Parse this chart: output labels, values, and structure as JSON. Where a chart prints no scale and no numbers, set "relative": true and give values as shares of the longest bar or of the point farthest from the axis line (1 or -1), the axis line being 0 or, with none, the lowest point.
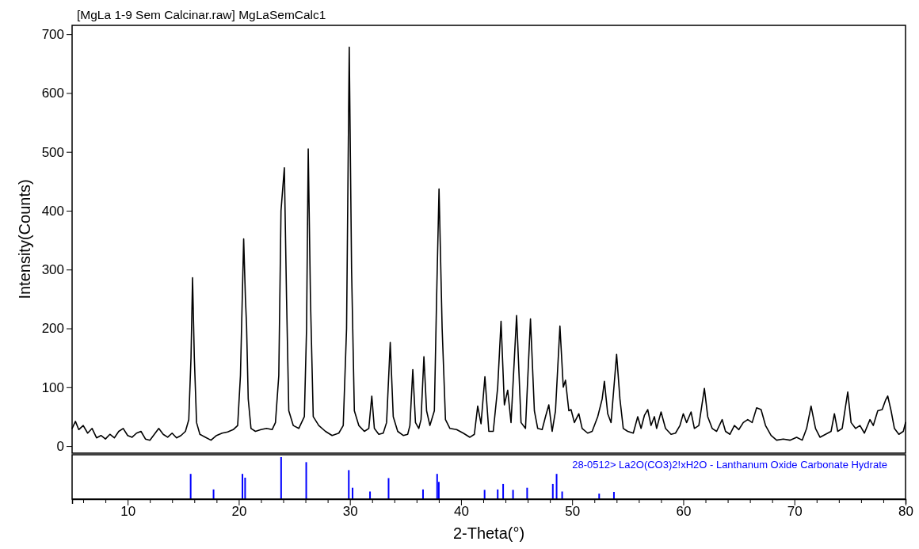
{
  "chart_data": [
    {
      "type": "line",
      "title": "[MgLa 1-9 Sem Calcinar.raw] MgLaSemCalc1",
      "ylabel": "Intensity(Counts)",
      "xlim": [
        5,
        80
      ],
      "ylim": [
        -12,
        715
      ],
      "yticks": [
        0,
        100,
        200,
        300,
        400,
        500,
        600,
        700
      ],
      "tick_labels": "y",
      "x": [
        5.0,
        5.3,
        5.6,
        6.0,
        6.4,
        6.8,
        7.2,
        7.6,
        8.0,
        8.4,
        8.8,
        9.2,
        9.6,
        10.0,
        10.4,
        10.8,
        11.2,
        11.6,
        12.0,
        12.4,
        12.8,
        13.2,
        13.6,
        14.0,
        14.4,
        14.8,
        15.2,
        15.5,
        15.7,
        15.84,
        16.0,
        16.2,
        16.5,
        17.0,
        17.5,
        18.0,
        18.5,
        19.0,
        19.5,
        19.9,
        20.15,
        20.44,
        20.6,
        20.7,
        20.85,
        21.1,
        21.5,
        22.0,
        22.5,
        23.0,
        23.3,
        23.6,
        23.8,
        24.1,
        24.3,
        24.5,
        24.9,
        25.4,
        25.9,
        26.1,
        26.25,
        26.45,
        26.7,
        27.2,
        27.8,
        28.4,
        29.0,
        29.4,
        29.7,
        29.94,
        30.15,
        30.4,
        30.8,
        31.3,
        31.7,
        31.97,
        32.2,
        32.6,
        33.0,
        33.3,
        33.63,
        33.9,
        34.3,
        34.8,
        35.2,
        35.4,
        35.66,
        35.9,
        36.2,
        36.4,
        36.66,
        36.9,
        37.2,
        37.6,
        37.8,
        38.02,
        38.3,
        38.6,
        39.0,
        39.6,
        40.2,
        40.8,
        41.2,
        41.5,
        41.8,
        42.15,
        42.5,
        42.9,
        43.3,
        43.6,
        43.9,
        44.2,
        44.5,
        45.0,
        45.4,
        45.8,
        46.25,
        46.6,
        46.9,
        47.3,
        47.6,
        47.9,
        48.2,
        48.5,
        48.9,
        49.2,
        49.4,
        49.7,
        49.9,
        50.2,
        50.6,
        50.9,
        51.4,
        51.8,
        52.3,
        52.7,
        52.9,
        53.2,
        53.5,
        54.0,
        54.3,
        54.6,
        55.0,
        55.5,
        55.9,
        56.2,
        56.5,
        56.8,
        57.1,
        57.4,
        57.6,
        58.0,
        58.4,
        58.9,
        59.3,
        59.7,
        60.0,
        60.3,
        60.7,
        61.0,
        61.4,
        61.9,
        62.2,
        62.6,
        63.0,
        63.5,
        63.8,
        64.2,
        64.6,
        65.0,
        65.4,
        65.8,
        66.2,
        66.6,
        67.0,
        67.4,
        67.9,
        68.4,
        69.0,
        69.6,
        70.2,
        70.7,
        71.1,
        71.5,
        71.9,
        72.3,
        72.8,
        73.3,
        73.6,
        73.9,
        74.3,
        74.8,
        75.1,
        75.5,
        75.9,
        76.3,
        76.8,
        77.1,
        77.5,
        77.9,
        78.2,
        78.4,
        78.7,
        79.0,
        79.4,
        79.8,
        80.0
      ],
      "series": [
        {
          "color": "#000000",
          "values": [
            30,
            42,
            28,
            35,
            22,
            30,
            14,
            18,
            12,
            20,
            14,
            25,
            30,
            18,
            15,
            22,
            25,
            12,
            10,
            20,
            30,
            20,
            15,
            22,
            14,
            18,
            25,
            45,
            150,
            286,
            150,
            40,
            20,
            15,
            10,
            18,
            22,
            24,
            28,
            35,
            120,
            352,
            250,
            205,
            80,
            30,
            25,
            28,
            30,
            28,
            40,
            120,
            400,
            473,
            250,
            60,
            35,
            30,
            50,
            200,
            505,
            250,
            50,
            35,
            25,
            18,
            22,
            35,
            200,
            678,
            300,
            60,
            35,
            25,
            30,
            85,
            30,
            20,
            22,
            40,
            176,
            50,
            25,
            18,
            20,
            35,
            130,
            40,
            30,
            45,
            152,
            60,
            35,
            60,
            250,
            437,
            200,
            45,
            30,
            28,
            22,
            15,
            20,
            68,
            38,
            118,
            25,
            25,
            100,
            212,
            70,
            95,
            40,
            222,
            40,
            30,
            216,
            60,
            30,
            28,
            50,
            70,
            25,
            60,
            204,
            100,
            112,
            60,
            62,
            40,
            55,
            30,
            22,
            25,
            50,
            80,
            110,
            55,
            40,
            156,
            80,
            30,
            25,
            22,
            50,
            30,
            52,
            62,
            35,
            50,
            30,
            58,
            30,
            20,
            22,
            35,
            55,
            40,
            58,
            30,
            35,
            98,
            50,
            30,
            25,
            45,
            25,
            20,
            35,
            28,
            40,
            45,
            40,
            65,
            62,
            35,
            18,
            10,
            12,
            10,
            15,
            10,
            30,
            68,
            30,
            15,
            20,
            25,
            55,
            25,
            30,
            92,
            40,
            30,
            35,
            22,
            45,
            35,
            60,
            62,
            78,
            85,
            60,
            30,
            20,
            25,
            40
          ]
        }
      ]
    },
    {
      "type": "bar",
      "relative": true,
      "xlabel": "2-Theta(°)",
      "xlim": [
        5,
        80
      ],
      "xticks": [
        {
          "value": 6,
          "label": null
        },
        {
          "value": 8,
          "label": null
        },
        10,
        {
          "value": 12,
          "label": null
        },
        {
          "value": 14,
          "label": null
        },
        {
          "value": 16,
          "label": null
        },
        {
          "value": 18,
          "label": null
        },
        20,
        {
          "value": 22,
          "label": null
        },
        {
          "value": 24,
          "label": null
        },
        {
          "value": 26,
          "label": null
        },
        {
          "value": 28,
          "label": null
        },
        30,
        {
          "value": 32,
          "label": null
        },
        {
          "value": 34,
          "label": null
        },
        {
          "value": 36,
          "label": null
        },
        {
          "value": 38,
          "label": null
        },
        40,
        {
          "value": 42,
          "label": null
        },
        {
          "value": 44,
          "label": null
        },
        {
          "value": 46,
          "label": null
        },
        {
          "value": 48,
          "label": null
        },
        50,
        {
          "value": 52,
          "label": null
        },
        {
          "value": 54,
          "label": null
        },
        {
          "value": 56,
          "label": null
        },
        {
          "value": 58,
          "label": null
        },
        60,
        {
          "value": 62,
          "label": null
        },
        {
          "value": 64,
          "label": null
        },
        {
          "value": 66,
          "label": null
        },
        {
          "value": 68,
          "label": null
        },
        70,
        {
          "value": 72,
          "label": null
        },
        {
          "value": 74,
          "label": null
        },
        {
          "value": 76,
          "label": null
        },
        {
          "value": 78,
          "label": null
        },
        80
      ],
      "tick_labels": "x",
      "x": [
        15.67,
        17.73,
        20.33,
        20.57,
        23.81,
        26.07,
        29.9,
        30.24,
        31.81,
        33.48,
        36.58,
        37.85,
        38.0,
        42.12,
        43.3,
        43.79,
        44.68,
        45.95,
        48.26,
        48.6,
        49.1,
        52.43,
        53.76
      ],
      "series": [
        {
          "name": "28-0512> La2O(CO3)2!xH2O - Lanthanum Oxide Carbonate Hydrate",
          "color": "#0000ff",
          "values": [
            0.6,
            0.23,
            0.6,
            0.51,
            1,
            0.88,
            0.69,
            0.27,
            0.18,
            0.5,
            0.23,
            0.6,
            0.41,
            0.22,
            0.23,
            0.36,
            0.22,
            0.27,
            0.36,
            0.6,
            0.18,
            0.13,
            0.17
          ]
        }
      ]
    }
  ]
}
